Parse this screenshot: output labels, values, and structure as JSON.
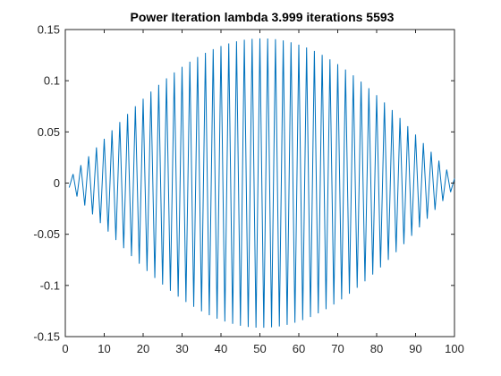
{
  "chart_data": {
    "type": "line",
    "title": "Power Iteration  lambda 3.999  iterations 5593",
    "xlabel": "",
    "ylabel": "",
    "xlim": [
      0,
      100
    ],
    "ylim": [
      -0.15,
      0.15
    ],
    "x_ticks": [
      0,
      10,
      20,
      30,
      40,
      50,
      60,
      70,
      80,
      90,
      100
    ],
    "y_ticks": [
      -0.15,
      -0.1,
      -0.05,
      0,
      0.05,
      0.1,
      0.15
    ],
    "y_tick_labels": [
      "-0.15",
      "-0.1",
      "-0.05",
      "0",
      "0.05",
      "0.1",
      "0.15"
    ],
    "x_tick_labels": [
      "0",
      "10",
      "20",
      "30",
      "40",
      "50",
      "60",
      "70",
      "80",
      "90",
      "100"
    ],
    "grid": false,
    "box": true,
    "series": [
      {
        "color": "#0072BD",
        "n_points": 100,
        "envelope_peak": 0.1414,
        "envelope_period": 101,
        "pattern": "alternating sign with sine envelope: y(i) = (-1)^i * 0.1414 * sin(pi*i/101), i = 1..100"
      }
    ]
  }
}
